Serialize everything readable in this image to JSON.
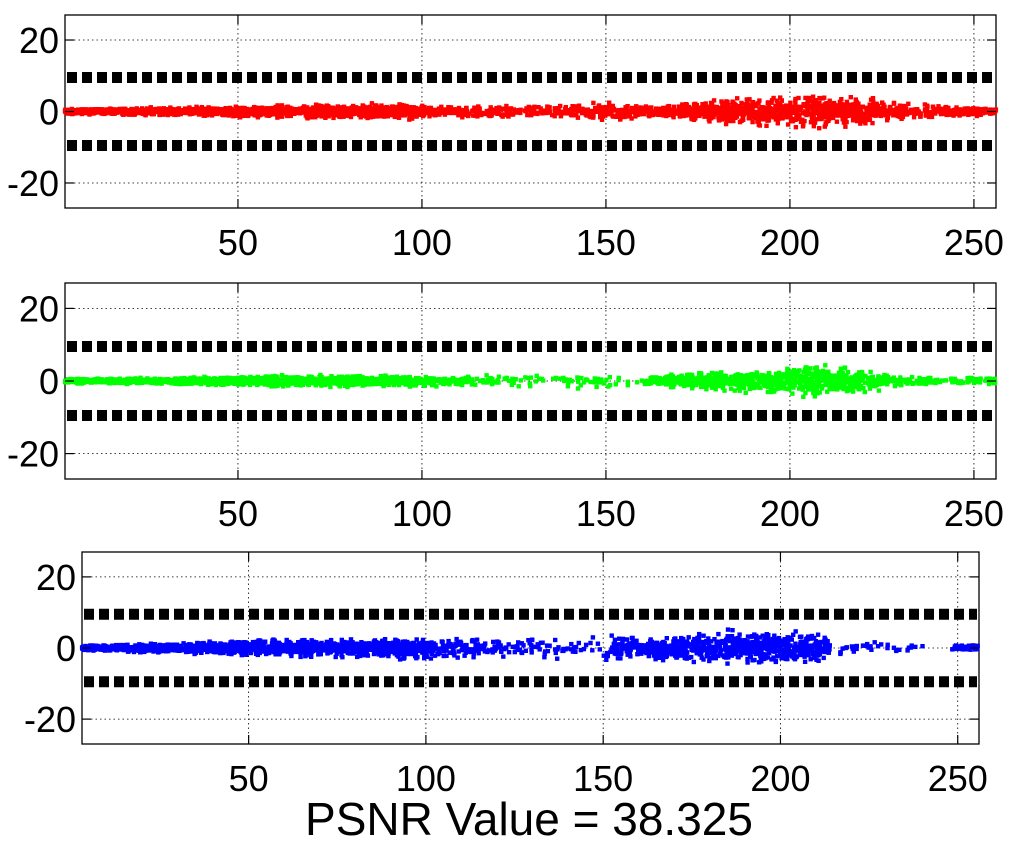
{
  "caption": "PSNR Value = 38.325",
  "chart_data": [
    {
      "type": "scatter",
      "name": "red-channel-plot",
      "xlim": [
        3,
        256
      ],
      "ylim": [
        -27,
        27
      ],
      "x_ticks": [
        50,
        100,
        150,
        200,
        250
      ],
      "y_ticks": [
        20,
        0,
        -20
      ],
      "grid": true,
      "threshold_lines": [
        9.5,
        -9.5
      ],
      "series_color": "#ff0000",
      "envelope": [
        [
          3,
          0.8
        ],
        [
          20,
          1.2
        ],
        [
          40,
          1.5
        ],
        [
          60,
          2.0
        ],
        [
          70,
          2.2
        ],
        [
          90,
          2.8
        ],
        [
          100,
          2.5
        ],
        [
          110,
          2.0
        ],
        [
          120,
          2.0
        ],
        [
          130,
          2.2
        ],
        [
          140,
          2.5
        ],
        [
          150,
          3.5
        ],
        [
          160,
          2.0
        ],
        [
          170,
          2.5
        ],
        [
          180,
          4.0
        ],
        [
          190,
          4.5
        ],
        [
          200,
          5.5
        ],
        [
          205,
          6.0
        ],
        [
          210,
          5.0
        ],
        [
          220,
          5.0
        ],
        [
          230,
          3.0
        ],
        [
          240,
          2.0
        ],
        [
          250,
          1.5
        ],
        [
          256,
          0.8
        ]
      ],
      "density_weights": [
        [
          3,
          1
        ],
        [
          90,
          1
        ],
        [
          100,
          0.5
        ],
        [
          140,
          0.4
        ],
        [
          150,
          0.4
        ],
        [
          165,
          0.7
        ],
        [
          180,
          1
        ],
        [
          220,
          1
        ],
        [
          235,
          0.4
        ],
        [
          245,
          0.6
        ],
        [
          256,
          1
        ]
      ]
    },
    {
      "type": "scatter",
      "name": "green-channel-plot",
      "xlim": [
        3,
        256
      ],
      "ylim": [
        -27,
        27
      ],
      "x_ticks": [
        50,
        100,
        150,
        200,
        250
      ],
      "y_ticks": [
        20,
        0,
        -20
      ],
      "grid": true,
      "threshold_lines": [
        9.5,
        -9.5
      ],
      "series_color": "#00ff00",
      "envelope": [
        [
          3,
          0.8
        ],
        [
          30,
          1.0
        ],
        [
          60,
          2.0
        ],
        [
          70,
          2.0
        ],
        [
          90,
          1.8
        ],
        [
          110,
          1.5
        ],
        [
          130,
          2.5
        ],
        [
          145,
          3.0
        ],
        [
          150,
          2.5
        ],
        [
          160,
          1.0
        ],
        [
          165,
          2.0
        ],
        [
          180,
          3.0
        ],
        [
          195,
          4.0
        ],
        [
          205,
          5.5
        ],
        [
          210,
          5.0
        ],
        [
          220,
          4.0
        ],
        [
          230,
          2.0
        ],
        [
          240,
          1.5
        ],
        [
          256,
          1.0
        ]
      ],
      "density_weights": [
        [
          3,
          1
        ],
        [
          95,
          1
        ],
        [
          105,
          0.5
        ],
        [
          115,
          0.15
        ],
        [
          150,
          0.15
        ],
        [
          160,
          0.05
        ],
        [
          165,
          0.8
        ],
        [
          215,
          1
        ],
        [
          228,
          0.3
        ],
        [
          245,
          0.2
        ],
        [
          256,
          0.5
        ]
      ]
    },
    {
      "type": "scatter",
      "name": "blue-channel-plot",
      "xlim": [
        3,
        256
      ],
      "ylim": [
        -27,
        27
      ],
      "x_ticks": [
        50,
        100,
        150,
        200,
        250
      ],
      "y_ticks": [
        20,
        0,
        -20
      ],
      "grid": true,
      "threshold_lines": [
        9.5,
        -9.5
      ],
      "series_color": "#0000ff",
      "envelope": [
        [
          3,
          0.8
        ],
        [
          30,
          1.8
        ],
        [
          60,
          3.0
        ],
        [
          70,
          3.0
        ],
        [
          90,
          3.5
        ],
        [
          100,
          4.0
        ],
        [
          120,
          3.0
        ],
        [
          140,
          3.5
        ],
        [
          150,
          4.0
        ],
        [
          160,
          3.5
        ],
        [
          180,
          5.0
        ],
        [
          195,
          6.0
        ],
        [
          205,
          5.0
        ],
        [
          212,
          5.0
        ],
        [
          220,
          2.0
        ],
        [
          240,
          1.5
        ],
        [
          256,
          1.0
        ]
      ],
      "density_weights": [
        [
          3,
          1
        ],
        [
          93,
          1
        ],
        [
          105,
          0.4
        ],
        [
          130,
          0.25
        ],
        [
          140,
          0.15
        ],
        [
          150,
          0.05
        ],
        [
          155,
          0.9
        ],
        [
          212,
          1
        ],
        [
          215,
          0.15
        ],
        [
          240,
          0.02
        ],
        [
          248,
          0.02
        ],
        [
          250,
          0.5
        ],
        [
          256,
          0.5
        ]
      ]
    }
  ]
}
